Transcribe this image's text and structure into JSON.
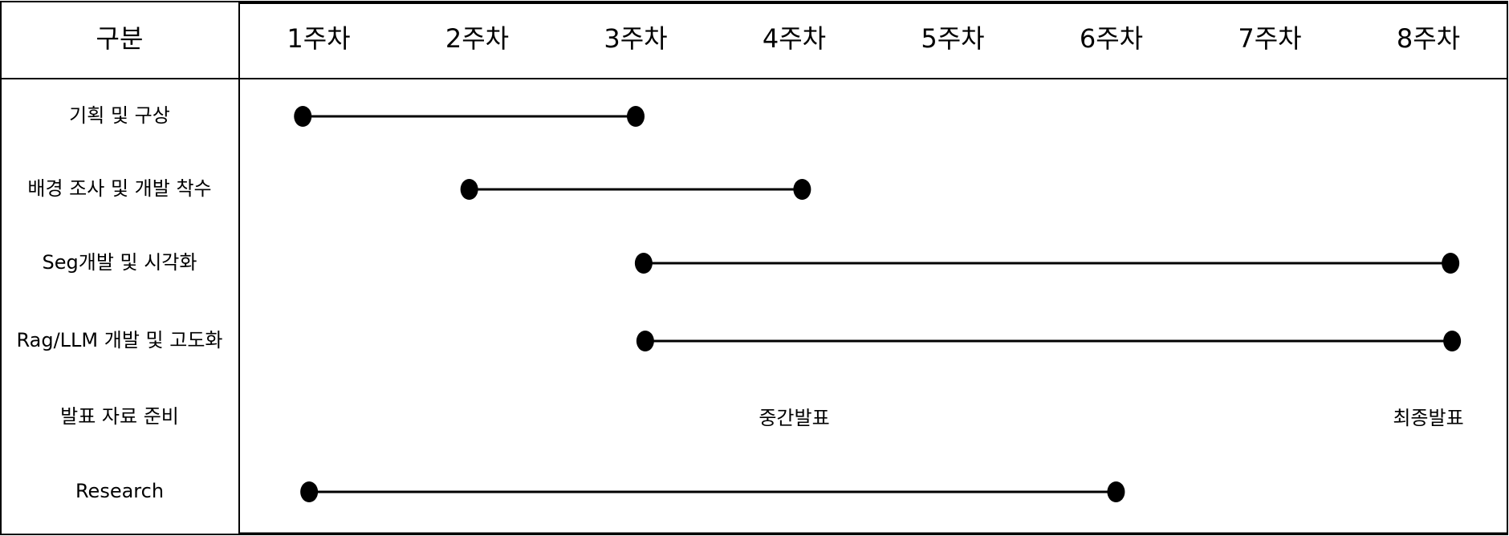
{
  "header": {
    "category_label": "구분",
    "weeks": [
      "1주차",
      "2주차",
      "3주차",
      "4주차",
      "5주차",
      "6주차",
      "7주차",
      "8주차"
    ]
  },
  "rows": [
    {
      "label": "기획 및 구상",
      "start_week": 0.9,
      "end_week": 3.0
    },
    {
      "label": "배경 조사 및 개발 착수",
      "start_week": 1.95,
      "end_week": 4.05
    },
    {
      "label": "Seg개발 및 시각화",
      "start_week": 3.05,
      "end_week": 8.14
    },
    {
      "label": "Rag/LLM 개발 및 고도화",
      "start_week": 3.06,
      "end_week": 8.15
    },
    {
      "label": "발표 자료 준비",
      "milestones": [
        {
          "label": "중간발표",
          "week": 4.0
        },
        {
          "label": "최종발표",
          "week": 8.0
        }
      ]
    },
    {
      "label": "Research",
      "start_week": 0.94,
      "end_week": 6.03
    }
  ],
  "colors": {
    "line": "#000000",
    "background": "#ffffff"
  }
}
